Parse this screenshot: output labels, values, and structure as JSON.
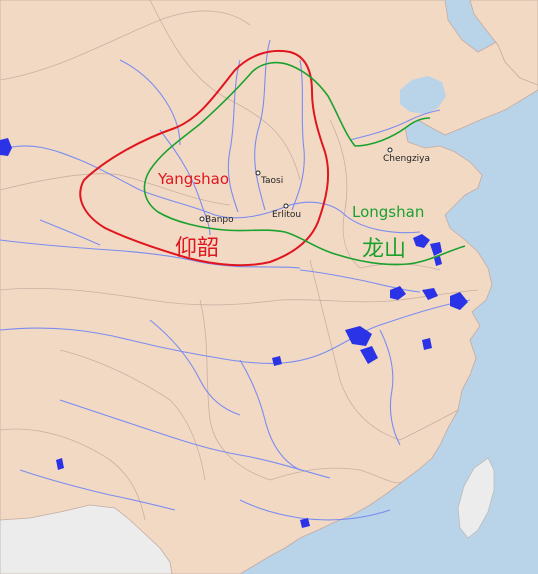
{
  "cultures": {
    "yangshao": {
      "label_en": "Yangshao",
      "label_cn": "仰韶",
      "color": "#e0161e"
    },
    "longshan": {
      "label_en": "Longshan",
      "label_cn": "龙山",
      "color": "#1aa12e"
    }
  },
  "sites": [
    {
      "name": "Taosi"
    },
    {
      "name": "Erlitou"
    },
    {
      "name": "Banpo"
    },
    {
      "name": "Chengziya"
    }
  ],
  "colors": {
    "land": "#f2d9c4",
    "sea": "#b9d3e9",
    "river": "#7b8cf0",
    "lake": "#2a33e6",
    "border": "#c4aba0",
    "neighbor_land": "#ececec"
  }
}
